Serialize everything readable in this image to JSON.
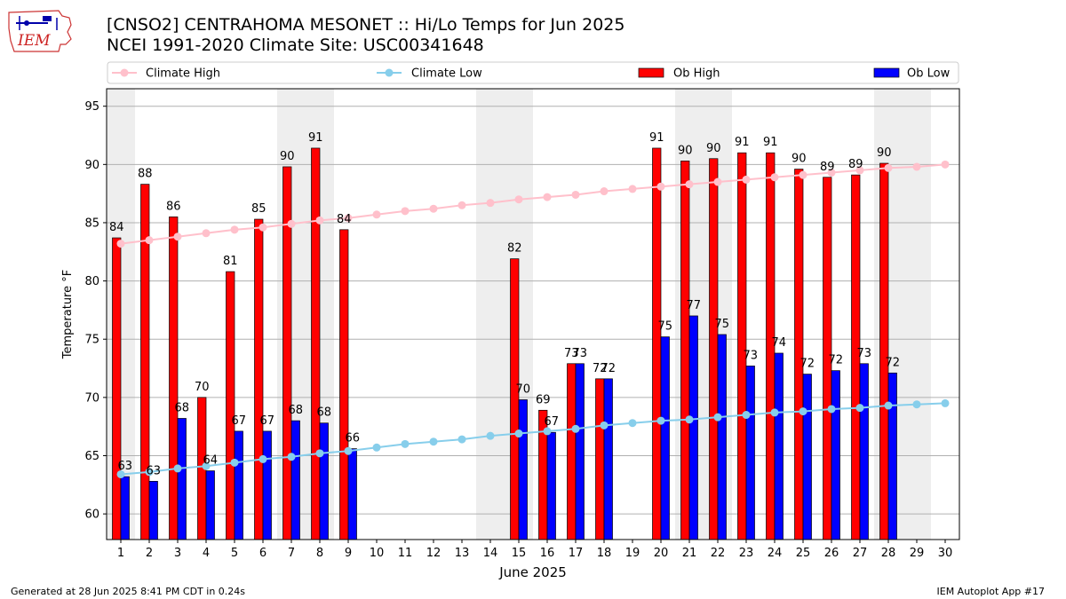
{
  "title_line1": "[CNSO2] CENTRAHOMA MESONET :: Hi/Lo Temps for Jun 2025",
  "title_line2": "NCEI 1991-2020 Climate Site: USC00341648",
  "logo_text": "IEM",
  "footer_left": "Generated at 28 Jun 2025 8:41 PM CDT in 0.24s",
  "footer_right": "IEM Autoplot App #17",
  "colors": {
    "ob_high": "#ff0000",
    "ob_low": "#0000ff",
    "climate_high": "#ffc0cb",
    "climate_low": "#87ceeb",
    "weekend_shade": "#eeeeee",
    "grid": "#b0b0b0"
  },
  "chart_data": {
    "type": "bar",
    "xlabel": "June 2025",
    "ylabel": "Temperature °F",
    "ylim": [
      57.8,
      96.5
    ],
    "yticks": [
      60,
      65,
      70,
      75,
      80,
      85,
      90,
      95
    ],
    "grid": "horizontal",
    "legend_placement": "top",
    "weekend_shade_days": [
      [
        1
      ],
      [
        7,
        8
      ],
      [
        14,
        15
      ],
      [
        21,
        22
      ],
      [
        28,
        29
      ]
    ],
    "legend": [
      "Climate High",
      "Climate Low",
      "Ob High",
      "Ob Low"
    ],
    "days": [
      1,
      2,
      3,
      4,
      5,
      6,
      7,
      8,
      9,
      10,
      11,
      12,
      13,
      14,
      15,
      16,
      17,
      18,
      19,
      20,
      21,
      22,
      23,
      24,
      25,
      26,
      27,
      28,
      29,
      30
    ],
    "series": [
      {
        "name": "Ob High",
        "kind": "bar",
        "values": [
          83.7,
          88.3,
          85.5,
          70.0,
          80.8,
          85.3,
          89.8,
          91.4,
          84.4,
          null,
          null,
          null,
          null,
          null,
          81.9,
          68.9,
          72.9,
          71.6,
          null,
          91.4,
          90.3,
          90.5,
          91.0,
          91.0,
          89.6,
          88.9,
          89.1,
          90.1,
          null,
          null
        ],
        "labels": [
          "84",
          "88",
          "86",
          "70",
          "81",
          "85",
          "90",
          "91",
          "84",
          "",
          "",
          "",
          "",
          "",
          "82",
          "69",
          "73",
          "72",
          "",
          "91",
          "90",
          "90",
          "91",
          "91",
          "90",
          "89",
          "89",
          "90",
          "",
          ""
        ]
      },
      {
        "name": "Ob Low",
        "kind": "bar",
        "values": [
          63.2,
          62.8,
          68.2,
          63.7,
          67.1,
          67.1,
          68.0,
          67.8,
          65.6,
          null,
          null,
          null,
          null,
          null,
          69.8,
          67.0,
          72.9,
          71.6,
          null,
          75.2,
          77.0,
          75.4,
          72.7,
          73.8,
          72.0,
          72.3,
          72.9,
          72.1,
          null,
          null
        ],
        "labels": [
          "63",
          "63",
          "68",
          "64",
          "67",
          "67",
          "68",
          "68",
          "66",
          "",
          "",
          "",
          "",
          "",
          "70",
          "67",
          "73",
          "72",
          "",
          "75",
          "77",
          "75",
          "73",
          "74",
          "72",
          "72",
          "73",
          "72",
          "",
          ""
        ]
      },
      {
        "name": "Climate High",
        "kind": "line",
        "values": [
          83.2,
          83.5,
          83.8,
          84.1,
          84.4,
          84.6,
          84.9,
          85.2,
          85.4,
          85.7,
          86.0,
          86.2,
          86.5,
          86.7,
          87.0,
          87.2,
          87.4,
          87.7,
          87.9,
          88.1,
          88.3,
          88.5,
          88.7,
          88.9,
          89.1,
          89.3,
          89.5,
          89.7,
          89.8,
          90.0
        ]
      },
      {
        "name": "Climate Low",
        "kind": "line",
        "values": [
          63.4,
          63.6,
          63.9,
          64.1,
          64.4,
          64.7,
          64.9,
          65.2,
          65.4,
          65.7,
          66.0,
          66.2,
          66.4,
          66.7,
          66.9,
          67.1,
          67.3,
          67.6,
          67.8,
          68.0,
          68.1,
          68.3,
          68.5,
          68.7,
          68.8,
          69.0,
          69.1,
          69.3,
          69.4,
          69.5
        ]
      }
    ]
  }
}
